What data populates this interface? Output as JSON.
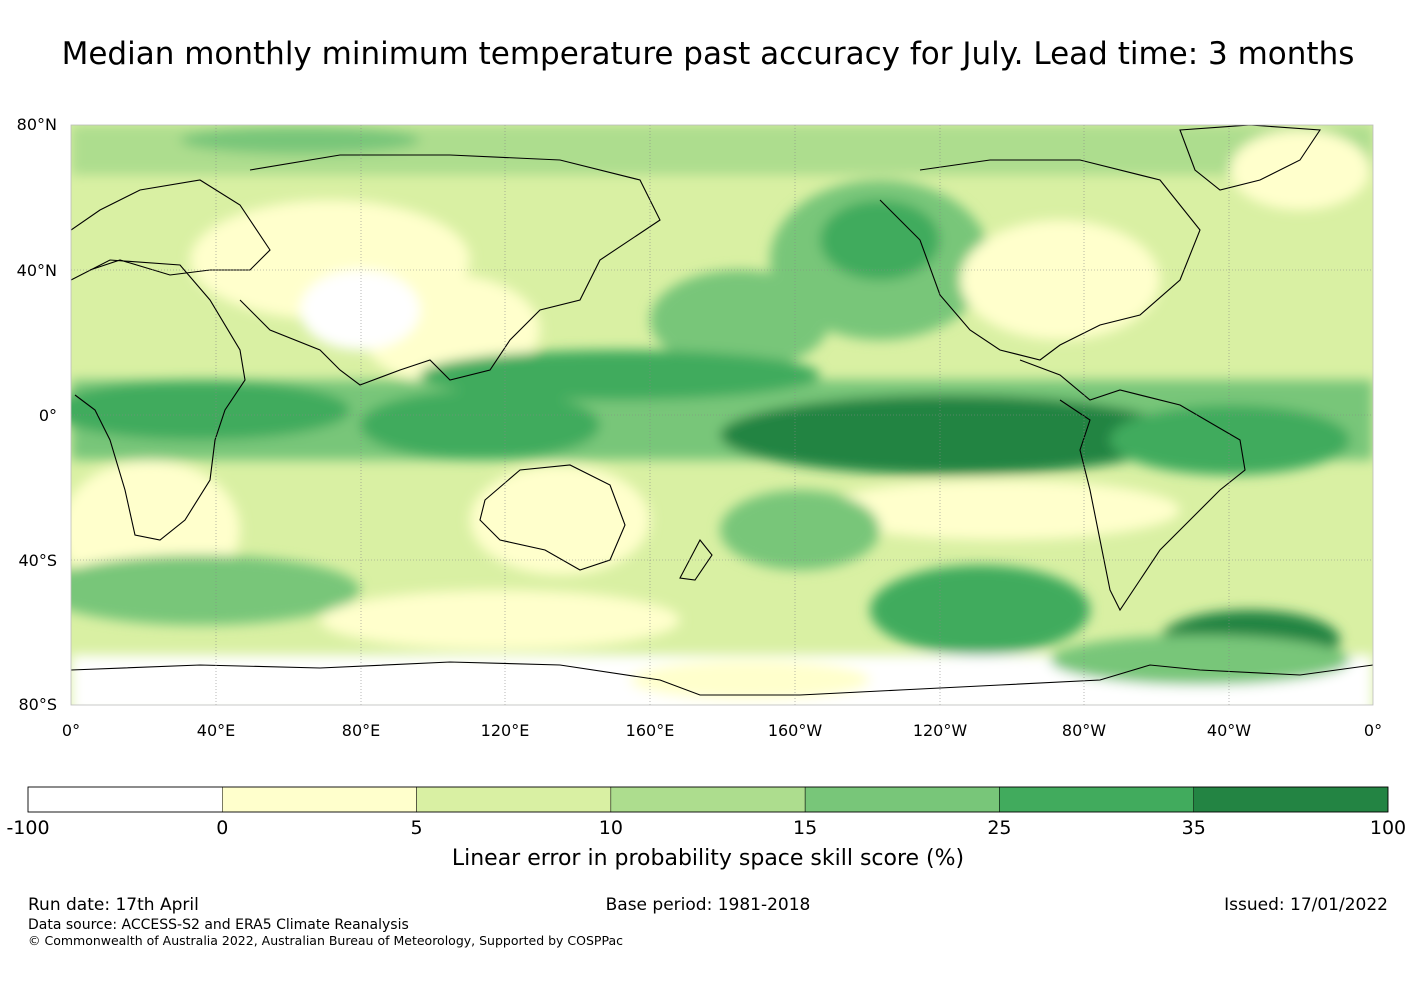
{
  "title": "Median monthly minimum temperature past accuracy for July. Lead time: 3 months",
  "map": {
    "lat_labels": [
      "80°N",
      "40°N",
      "0°",
      "40°S",
      "80°S"
    ],
    "lon_labels": [
      "0°",
      "40°E",
      "80°E",
      "120°E",
      "160°E",
      "160°W",
      "120°W",
      "80°W",
      "40°W",
      "0°"
    ]
  },
  "colorbar": {
    "label": "Linear error in probability space skill score (%)",
    "ticks": [
      "-100",
      "0",
      "5",
      "10",
      "15",
      "25",
      "35",
      "100"
    ],
    "bins": [
      {
        "from": -100,
        "to": 0,
        "color": "#ffffff"
      },
      {
        "from": 0,
        "to": 5,
        "color": "#ffffcc"
      },
      {
        "from": 5,
        "to": 10,
        "color": "#d9f0a3"
      },
      {
        "from": 10,
        "to": 15,
        "color": "#addd8e"
      },
      {
        "from": 15,
        "to": 25,
        "color": "#78c679"
      },
      {
        "from": 25,
        "to": 35,
        "color": "#41ab5d"
      },
      {
        "from": 35,
        "to": 100,
        "color": "#238443"
      }
    ]
  },
  "footer": {
    "run_date": "Run date: 17th April",
    "base_period": "Base period: 1981-2018",
    "issued": "Issued: 17/01/2022",
    "data_source": "Data source: ACCESS-S2 and ERA5 Climate Reanalysis",
    "copyright": "© Commonwealth of Australia 2022, Australian Bureau of Meteorology, Supported by COSPPac"
  }
}
